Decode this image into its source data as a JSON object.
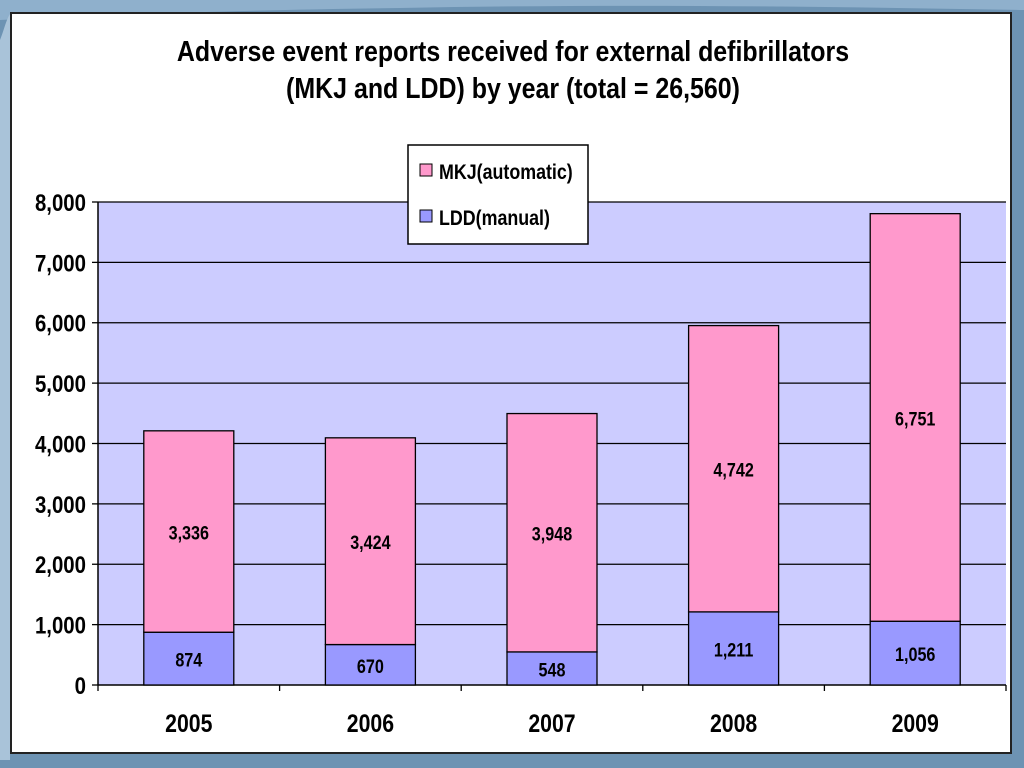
{
  "colors": {
    "slide_bg": "#6d93b3",
    "plot_bg": "#ccccff",
    "mkj": "#ff99cc",
    "ldd": "#9999ff",
    "gridline": "#000000"
  },
  "chart_data": {
    "type": "bar",
    "stacked": true,
    "title_line1": "Adverse event reports received for external defibrillators",
    "title_line2": "(MKJ and LDD) by year (total = 26,560)",
    "categories": [
      "2005",
      "2006",
      "2007",
      "2008",
      "2009"
    ],
    "series": [
      {
        "name": "LDD(manual)",
        "values": [
          874,
          670,
          548,
          1211,
          1056
        ],
        "labels": [
          "874",
          "670",
          "548",
          "1,211",
          "1,056"
        ],
        "color": "#9999ff"
      },
      {
        "name": "MKJ(automatic)",
        "values": [
          3336,
          3424,
          3948,
          4742,
          6751
        ],
        "labels": [
          "3,336",
          "3,424",
          "3,948",
          "4,742",
          "6,751"
        ],
        "color": "#ff99cc"
      }
    ],
    "ylim": [
      0,
      8000
    ],
    "yticks": [
      0,
      1000,
      2000,
      3000,
      4000,
      5000,
      6000,
      7000,
      8000
    ],
    "ytick_labels": [
      "0",
      "1,000",
      "2,000",
      "3,000",
      "4,000",
      "5,000",
      "6,000",
      "7,000",
      "8,000"
    ],
    "grid": true,
    "legend_position": "top-center",
    "legend_order": [
      "MKJ(automatic)",
      "LDD(manual)"
    ]
  }
}
